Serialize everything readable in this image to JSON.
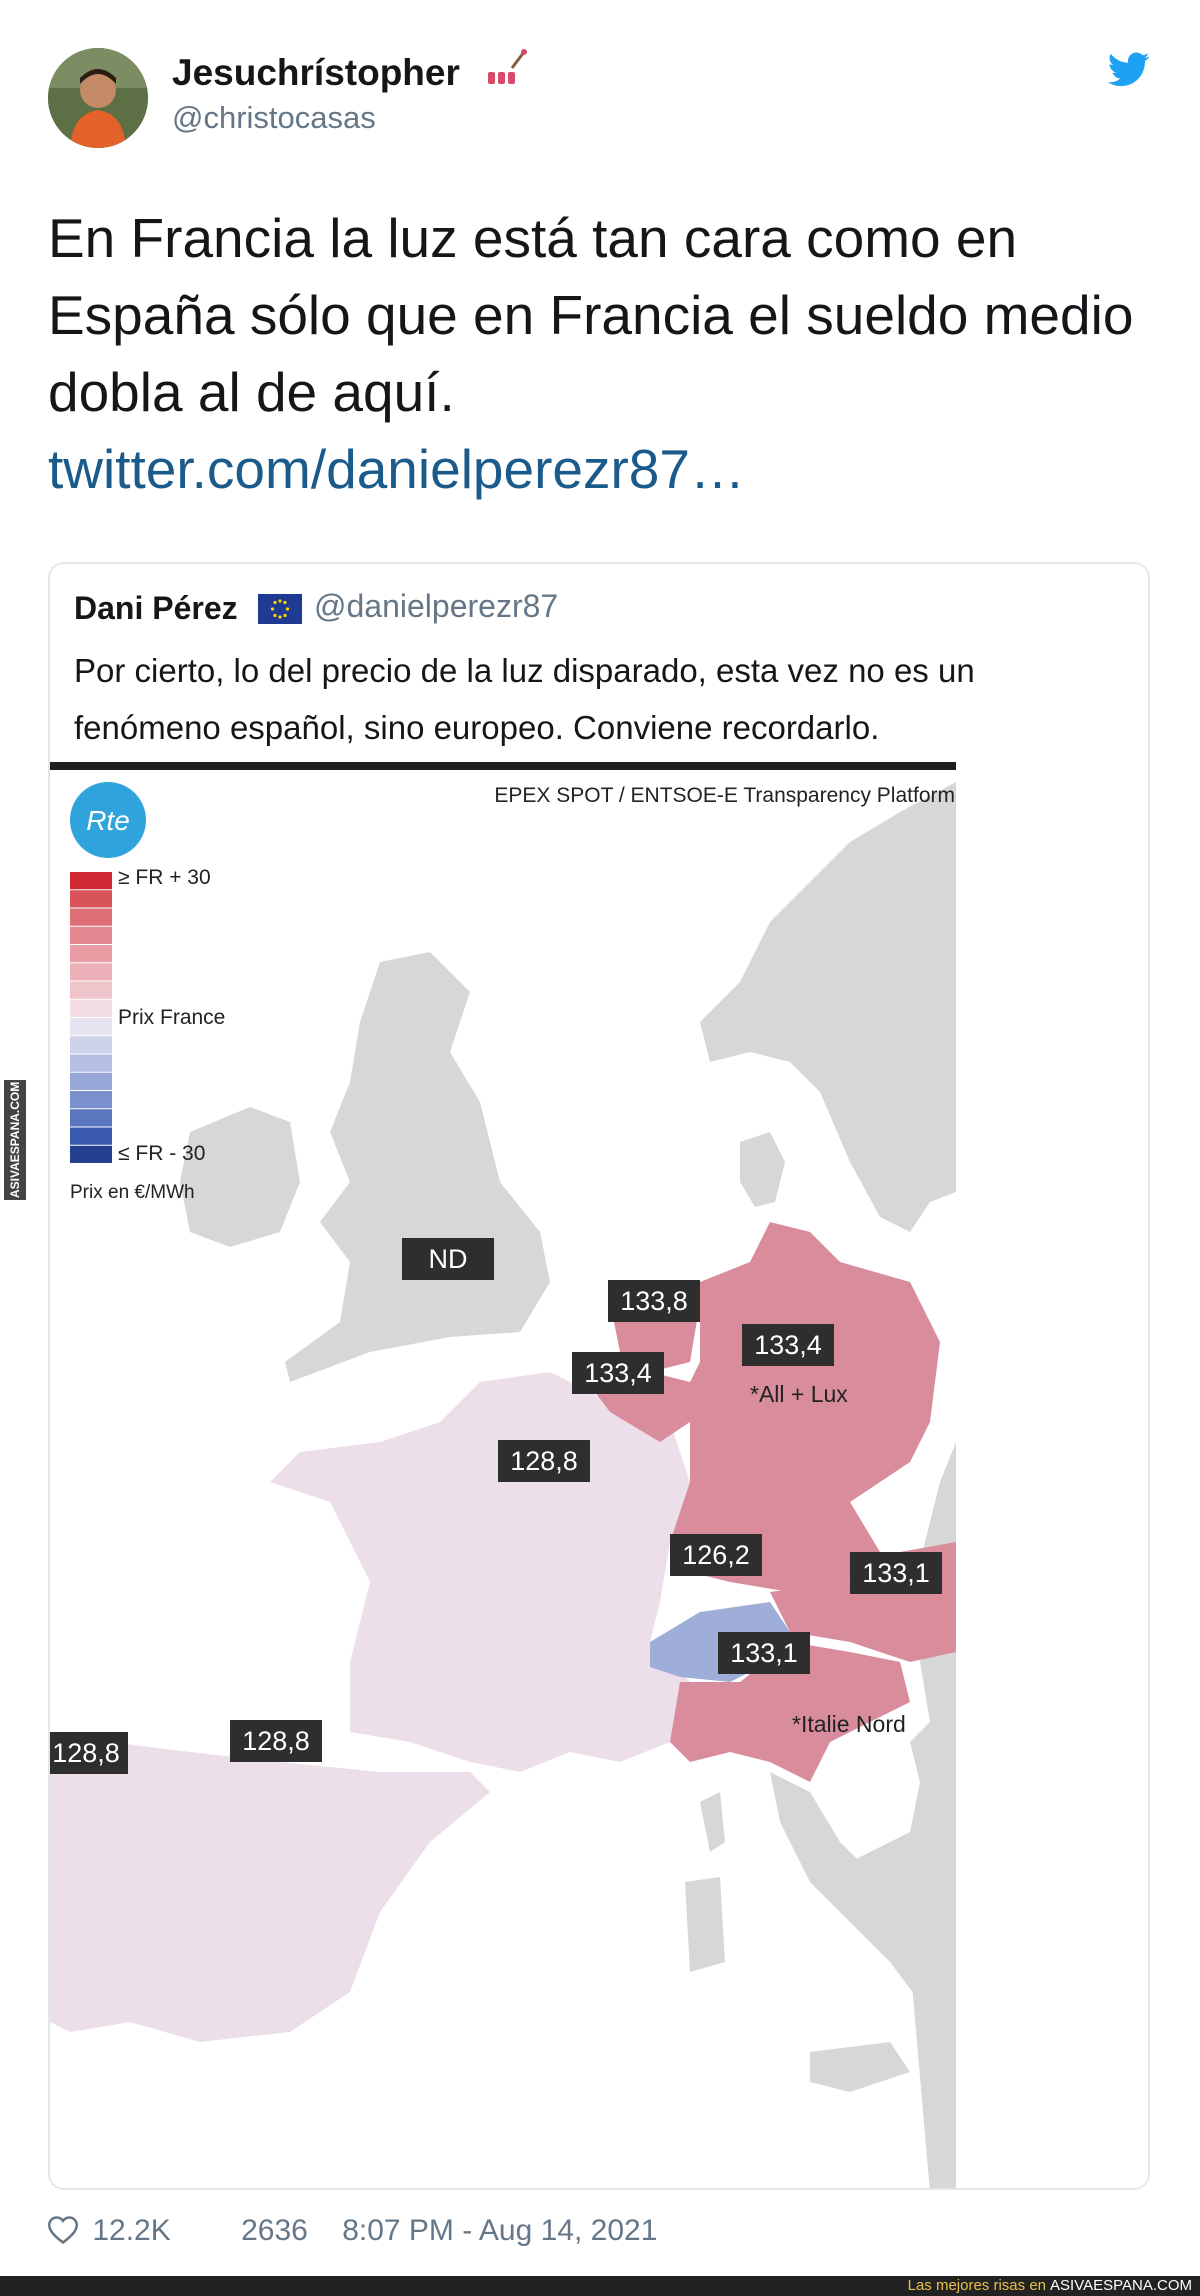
{
  "author": {
    "display_name": "Jesuchrístopher",
    "handle": "@christocasas"
  },
  "tweet": {
    "text": "En Francia la luz está tan cara como en España sólo que en Francia el sueldo medio dobla al de aquí.",
    "link": "twitter.com/danielperezr87…"
  },
  "quoted": {
    "name": "Dani Pérez",
    "handle": "@danielperezr87",
    "text": "Por cierto, lo del precio de la luz disparado, esta vez no es un fenómeno español, sino europeo. Conviene recordarlo.",
    "map": {
      "logo": "Rte",
      "source": "EPEX SPOT / ENTSOE-E Transparency Platform",
      "legend": {
        "top": "≥ FR + 30",
        "middle": "Prix France",
        "bottom": "≤ FR - 30",
        "unit": "Prix en €/MWh",
        "colors": [
          "#d22a35",
          "#d9535b",
          "#df6f77",
          "#e48791",
          "#e99ba4",
          "#ecb0b8",
          "#efc4cb",
          "#f2dde3",
          "#e6e4f1",
          "#cfd3ea",
          "#b4bfe3",
          "#97a8d8",
          "#7a90cc",
          "#5b76bf",
          "#3b5aae",
          "#23418f"
        ]
      },
      "labels": {
        "uk": "ND",
        "netherlands": "133,8",
        "belgium": "133,4",
        "germany": "133,4",
        "germany_note": "*All + Lux",
        "france": "128,8",
        "switzerland": "126,2",
        "austria": "133,1",
        "italy": "133,1",
        "italy_note": "*Italie Nord",
        "spain": "128,8",
        "portugal": "128,8"
      },
      "colors": {
        "land": "#d7d7d7",
        "france": "#ecdfe9",
        "high": "#d98c9c",
        "low": "#9eaed8",
        "tag": "#2e2e2e"
      }
    }
  },
  "footer": {
    "likes": "12.2K",
    "retweets": "2636",
    "timestamp": "8:07 PM - Aug 14, 2021"
  },
  "watermark": {
    "side": "ASIVAESPANA.COM",
    "bottom_prefix": "Las mejores risas en",
    "bottom_site": "ASIVAESPANA.COM"
  }
}
